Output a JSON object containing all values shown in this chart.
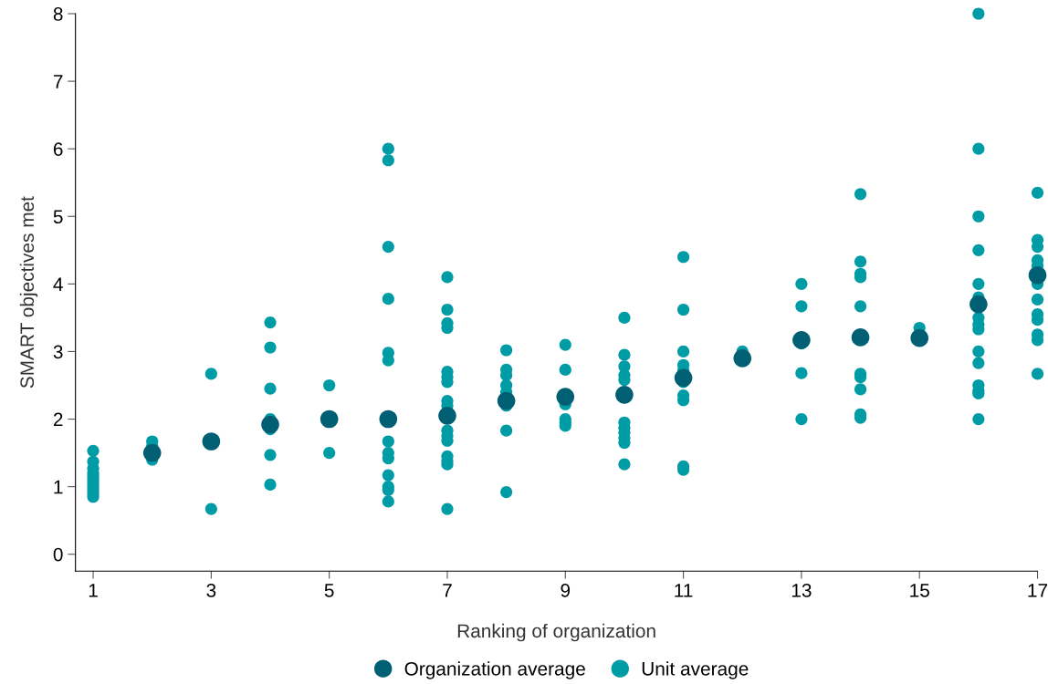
{
  "chart_data": {
    "type": "scatter",
    "xlabel": "Ranking of organization",
    "ylabel": "SMART objectives met",
    "xlim": [
      0.7,
      17
    ],
    "xticks": [
      1,
      3,
      5,
      7,
      9,
      11,
      13,
      15,
      17
    ],
    "ylim": [
      -0.25,
      8
    ],
    "yticks": [
      0,
      1,
      2,
      3,
      4,
      5,
      6,
      7,
      8
    ],
    "grid": false,
    "legend": "bottom",
    "marker": "circle",
    "series": [
      {
        "name": "Unit average",
        "color": "#009ca6",
        "x": [
          1,
          1,
          1,
          1,
          1,
          1,
          1,
          1,
          1,
          1,
          1,
          2,
          2,
          2,
          3,
          3,
          4,
          4,
          4,
          4,
          4,
          4,
          4,
          5,
          5,
          6,
          6,
          6,
          6,
          6,
          6,
          6,
          6,
          6,
          6,
          6,
          6,
          6,
          7,
          7,
          7,
          7,
          7,
          7,
          7,
          7,
          7,
          7,
          7,
          7,
          7,
          7,
          7,
          7,
          8,
          8,
          8,
          8,
          8,
          8,
          8,
          8,
          9,
          9,
          9,
          9,
          9,
          9,
          10,
          10,
          10,
          10,
          10,
          10,
          10,
          10,
          10,
          10,
          10,
          11,
          11,
          11,
          11,
          11,
          11,
          11,
          11,
          11,
          11,
          12,
          13,
          13,
          13,
          13,
          13,
          14,
          14,
          14,
          14,
          14,
          14,
          14,
          14,
          14,
          14,
          15,
          16,
          16,
          16,
          16,
          16,
          16,
          16,
          16,
          16,
          16,
          16,
          16,
          16,
          16,
          16,
          17,
          17,
          17,
          17,
          17,
          17,
          17,
          17,
          17,
          17,
          17,
          17
        ],
        "values": [
          1.53,
          1.37,
          1.27,
          1.2,
          1.15,
          1.1,
          1.05,
          1.0,
          0.95,
          0.9,
          0.85,
          1.67,
          1.6,
          1.4,
          2.67,
          0.67,
          3.43,
          3.06,
          2.45,
          2.0,
          1.85,
          1.47,
          1.03,
          2.5,
          1.5,
          6.0,
          5.83,
          4.55,
          3.78,
          2.98,
          2.87,
          1.67,
          1.5,
          1.42,
          1.17,
          1.0,
          0.95,
          0.78,
          4.1,
          3.62,
          3.42,
          3.35,
          2.7,
          2.62,
          2.55,
          2.27,
          2.2,
          1.83,
          1.75,
          1.68,
          1.45,
          1.38,
          1.33,
          0.67,
          3.02,
          2.73,
          2.65,
          2.5,
          2.4,
          2.2,
          1.83,
          0.92,
          3.1,
          2.73,
          2.22,
          2.0,
          1.95,
          1.9,
          3.5,
          2.95,
          2.78,
          2.65,
          2.58,
          1.95,
          1.87,
          1.8,
          1.72,
          1.65,
          1.33,
          4.4,
          3.62,
          3.0,
          2.8,
          2.72,
          2.55,
          2.35,
          2.28,
          1.3,
          1.25,
          3.0,
          4.0,
          3.67,
          3.12,
          2.68,
          2.0,
          5.33,
          4.33,
          4.15,
          4.1,
          3.67,
          2.67,
          2.62,
          2.44,
          2.07,
          2.02,
          3.35,
          8.0,
          6.0,
          5.0,
          4.5,
          4.0,
          3.8,
          3.5,
          3.4,
          3.33,
          3.0,
          2.83,
          2.5,
          2.42,
          2.38,
          2.0,
          5.35,
          4.65,
          4.55,
          4.35,
          4.27,
          4.0,
          3.77,
          3.55,
          3.47,
          3.25,
          3.17,
          2.67
        ]
      },
      {
        "name": "Organization average",
        "color": "#005f73",
        "x": [
          2,
          3,
          4,
          5,
          6,
          7,
          8,
          9,
          10,
          11,
          12,
          13,
          14,
          15,
          16,
          17
        ],
        "values": [
          1.5,
          1.67,
          1.92,
          2.0,
          2.0,
          2.05,
          2.27,
          2.33,
          2.36,
          2.61,
          2.9,
          3.17,
          3.21,
          3.2,
          3.7,
          4.13
        ]
      }
    ]
  }
}
